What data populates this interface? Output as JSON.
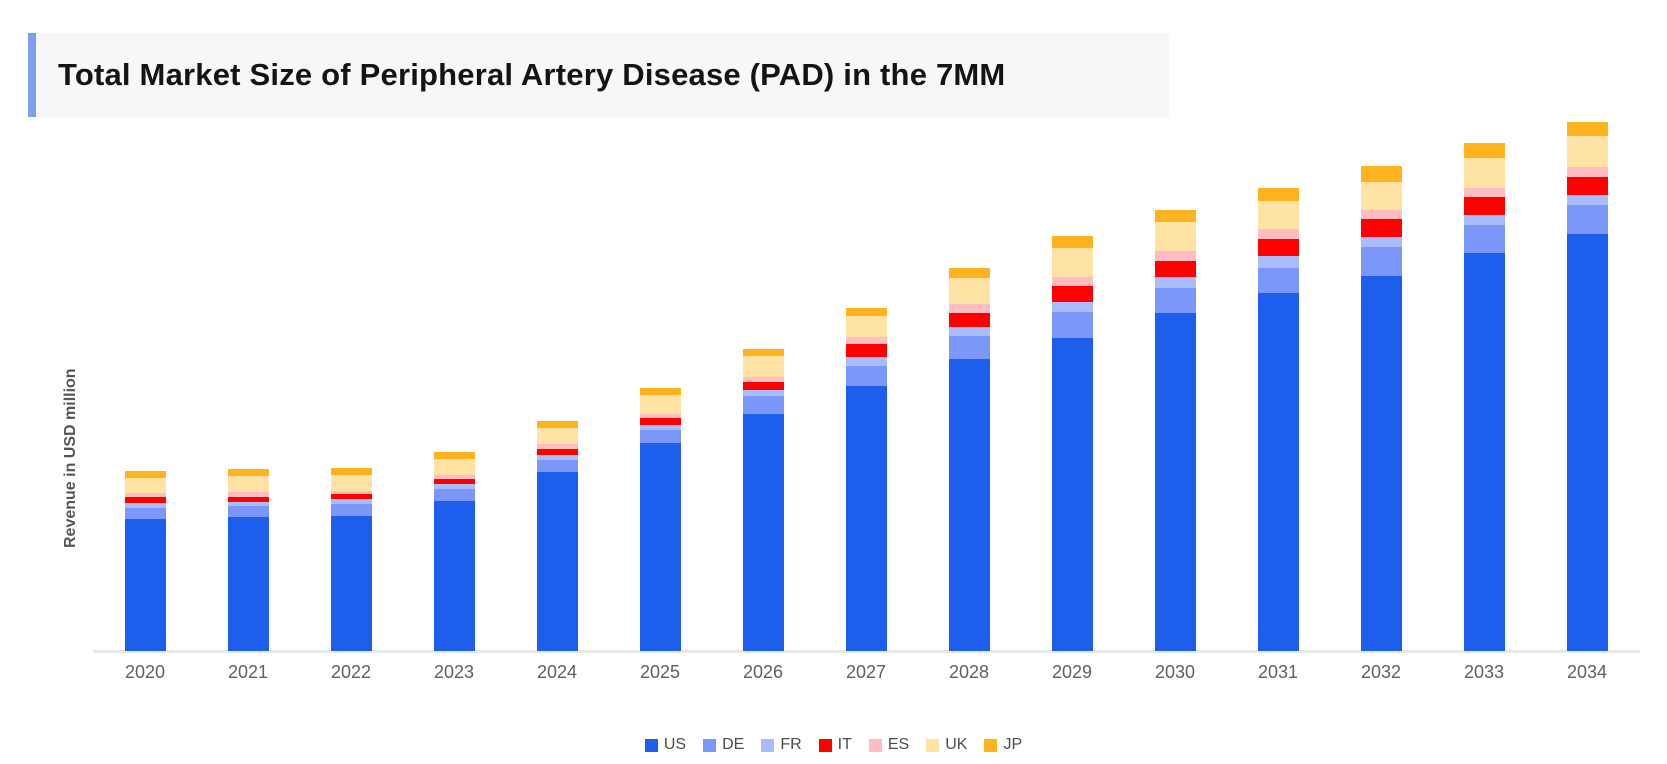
{
  "title": "Total Market Size of Peripheral Artery Disease (PAD) in the 7MM",
  "accent_color": "#7c9ff2",
  "title_background": "#f7f7f8",
  "chart_data": {
    "type": "bar",
    "stacked": true,
    "title": "Total Market Size of Peripheral Artery Disease (PAD) in the 7MM",
    "xlabel": "",
    "ylabel": "Revenue in USD million",
    "y_ticks": [],
    "ylim": [
      0,
      5400
    ],
    "grid": false,
    "legend_position": "bottom",
    "categories": [
      "2020",
      "2021",
      "2022",
      "2023",
      "2024",
      "2025",
      "2026",
      "2027",
      "2028",
      "2029",
      "2030",
      "2031",
      "2032",
      "2033",
      "2034"
    ],
    "series": [
      {
        "name": "US",
        "color": "#1d5fec",
        "values": [
          1320,
          1340,
          1350,
          1500,
          1790,
          2080,
          2370,
          2650,
          2920,
          3130,
          3380,
          3580,
          3750,
          3980,
          4170
        ]
      },
      {
        "name": "DE",
        "color": "#7b97fa",
        "values": [
          110,
          110,
          120,
          120,
          120,
          130,
          180,
          200,
          230,
          260,
          250,
          250,
          290,
          280,
          290
        ]
      },
      {
        "name": "FR",
        "color": "#a9bcfc",
        "values": [
          50,
          40,
          50,
          50,
          50,
          50,
          60,
          90,
          90,
          100,
          110,
          120,
          100,
          100,
          100
        ]
      },
      {
        "name": "IT",
        "color": "#fe0000",
        "values": [
          60,
          50,
          50,
          50,
          60,
          70,
          80,
          130,
          140,
          160,
          160,
          170,
          180,
          180,
          180
        ]
      },
      {
        "name": "ES",
        "color": "#ffbdc2",
        "values": [
          40,
          50,
          30,
          40,
          50,
          40,
          50,
          70,
          90,
          90,
          100,
          100,
          90,
          90,
          100
        ]
      },
      {
        "name": "UK",
        "color": "#ffe3a4",
        "values": [
          150,
          160,
          160,
          160,
          160,
          190,
          210,
          210,
          260,
          290,
          290,
          280,
          280,
          300,
          310
        ]
      },
      {
        "name": "JP",
        "color": "#ffb31f",
        "values": [
          70,
          70,
          70,
          70,
          70,
          70,
          70,
          80,
          100,
          120,
          120,
          130,
          160,
          150,
          140
        ]
      }
    ],
    "note": "Y axis has no numeric tick labels; values estimated in USD million from bar proportions."
  }
}
